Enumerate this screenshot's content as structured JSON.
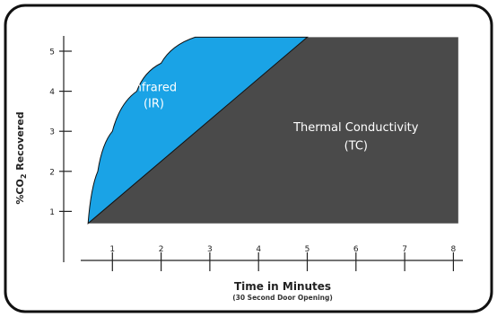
{
  "chart_data": {
    "type": "area",
    "xlabel": "Time in Minutes",
    "xlabel_sub": "(30 Second Door Opening)",
    "ylabel": "%CO2 Recovered",
    "ylabel_parts": {
      "pre": "%CO",
      "sub": "2",
      "post": " Recovered"
    },
    "xlim": [
      0,
      8
    ],
    "ylim": [
      0,
      5
    ],
    "x_ticks": [
      "1",
      "2",
      "3",
      "4",
      "5",
      "6",
      "7",
      "8"
    ],
    "y_ticks": [
      "1",
      "2",
      "3",
      "4",
      "5"
    ],
    "series": [
      {
        "name": "Infrared",
        "short": "(IR)",
        "color": "#1aa3e6",
        "points": [
          [
            0.5,
            0.7
          ],
          [
            0.7,
            2.0
          ],
          [
            1.0,
            3.0
          ],
          [
            1.5,
            4.0
          ],
          [
            2.0,
            4.7
          ],
          [
            2.7,
            5.35
          ]
        ]
      },
      {
        "name": "Thermal Conductivity",
        "short": "(TC)",
        "color": "#4a4a4a",
        "points": [
          [
            0.5,
            0.7
          ],
          [
            5.0,
            5.35
          ]
        ]
      }
    ],
    "top_value": 5.35,
    "grid": false,
    "legend": "inline"
  }
}
